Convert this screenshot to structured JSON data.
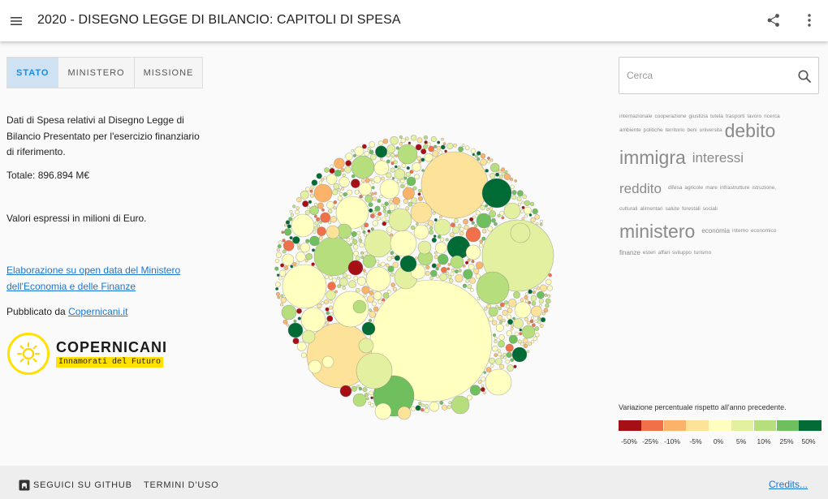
{
  "header": {
    "title": "2020 - DISEGNO LEGGE DI BILANCIO: CAPITOLI DI SPESA",
    "menu_icon": "menu-icon",
    "share_icon": "share-icon",
    "more_icon": "more-vert-icon"
  },
  "tabs": [
    {
      "label": "STATO",
      "active": true
    },
    {
      "label": "MINISTERO",
      "active": false
    },
    {
      "label": "MISSIONE",
      "active": false
    }
  ],
  "info": {
    "description": "Dati di Spesa relativi al Disegno Legge di Bilancio Presentato per l'esercizio finanziario di riferimento.",
    "total": "Totale: 896.894 M€",
    "units": "Valori espressi in milioni di Euro.",
    "source_link": "Elaborazione su open data del Ministero dell'Economia e delle Finanze",
    "published_prefix": "Pubblicato da ",
    "published_link": "Copernicani.it"
  },
  "logo": {
    "name": "COPERNICANI",
    "tagline": "Innamorati del Futuro",
    "color": "#ffe000"
  },
  "search": {
    "placeholder": "Cerca",
    "icon": "search-icon"
  },
  "tagcloud": [
    [
      [
        "internazionale",
        "xs"
      ],
      [
        "cooperazione",
        "xs"
      ],
      [
        "giustizia",
        "xs"
      ],
      [
        "tutela",
        "xs"
      ],
      [
        "trasporti",
        "xs"
      ],
      [
        "lavoro",
        "xs"
      ],
      [
        "ricerca",
        "xs"
      ]
    ],
    [
      [
        "ambiente",
        "xs"
      ],
      [
        "politiche",
        "xs"
      ],
      [
        "territorio",
        "xs"
      ],
      [
        "beni",
        "xs"
      ],
      [
        "universita",
        "xs"
      ],
      [
        "debito",
        "l"
      ]
    ],
    [
      [
        "immigra",
        "l"
      ],
      [
        "interessi",
        "m"
      ]
    ],
    [
      [
        "reddito",
        "m"
      ],
      [
        "difesa",
        "xs"
      ],
      [
        "agricole",
        "xs"
      ],
      [
        "mare",
        "xs"
      ],
      [
        "infrastrutture",
        "xs"
      ],
      [
        "istruzione,",
        "xs"
      ]
    ],
    [
      [
        "culturali",
        "xs"
      ],
      [
        "alimentari",
        "xs"
      ],
      [
        "salute",
        "xs"
      ],
      [
        "forestali",
        "xs"
      ],
      [
        "sociali",
        "xs"
      ]
    ],
    [
      [
        "ministero",
        "l"
      ],
      [
        "economia",
        "s"
      ],
      [
        "interno",
        "xs"
      ],
      [
        "economico",
        "xs"
      ]
    ],
    [
      [
        "finanze",
        "s"
      ],
      [
        "esteri",
        "xs"
      ],
      [
        "affari",
        "xs"
      ],
      [
        "sviluppo",
        "xs"
      ],
      [
        "turismo",
        "xs"
      ]
    ]
  ],
  "legend": {
    "title": "Variazione percentuale rispetto all'anno precedente.",
    "items": [
      {
        "label": "-50%",
        "color": "#a50f15"
      },
      {
        "label": "-25%",
        "color": "#ef7049"
      },
      {
        "label": "-10%",
        "color": "#fbb36a"
      },
      {
        "label": "-5%",
        "color": "#fde29a"
      },
      {
        "label": "0%",
        "color": "#ffffbf"
      },
      {
        "label": "5%",
        "color": "#e3f0a0"
      },
      {
        "label": "10%",
        "color": "#b7de7c"
      },
      {
        "label": "25%",
        "color": "#6fbf5e"
      },
      {
        "label": "50%",
        "color": "#006b35"
      }
    ]
  },
  "chart_data": {
    "type": "bubble",
    "title": "",
    "color_scale": "Variazione percentuale rispetto all'anno precedente",
    "note": "Circle packing of spending chapters; circle area proportional to spending, color by percentage change vs previous year."
  },
  "footer": {
    "github": "SEGUICI SU GITHUB",
    "terms": "TERMINI D'USO",
    "credits": "Credits..."
  }
}
